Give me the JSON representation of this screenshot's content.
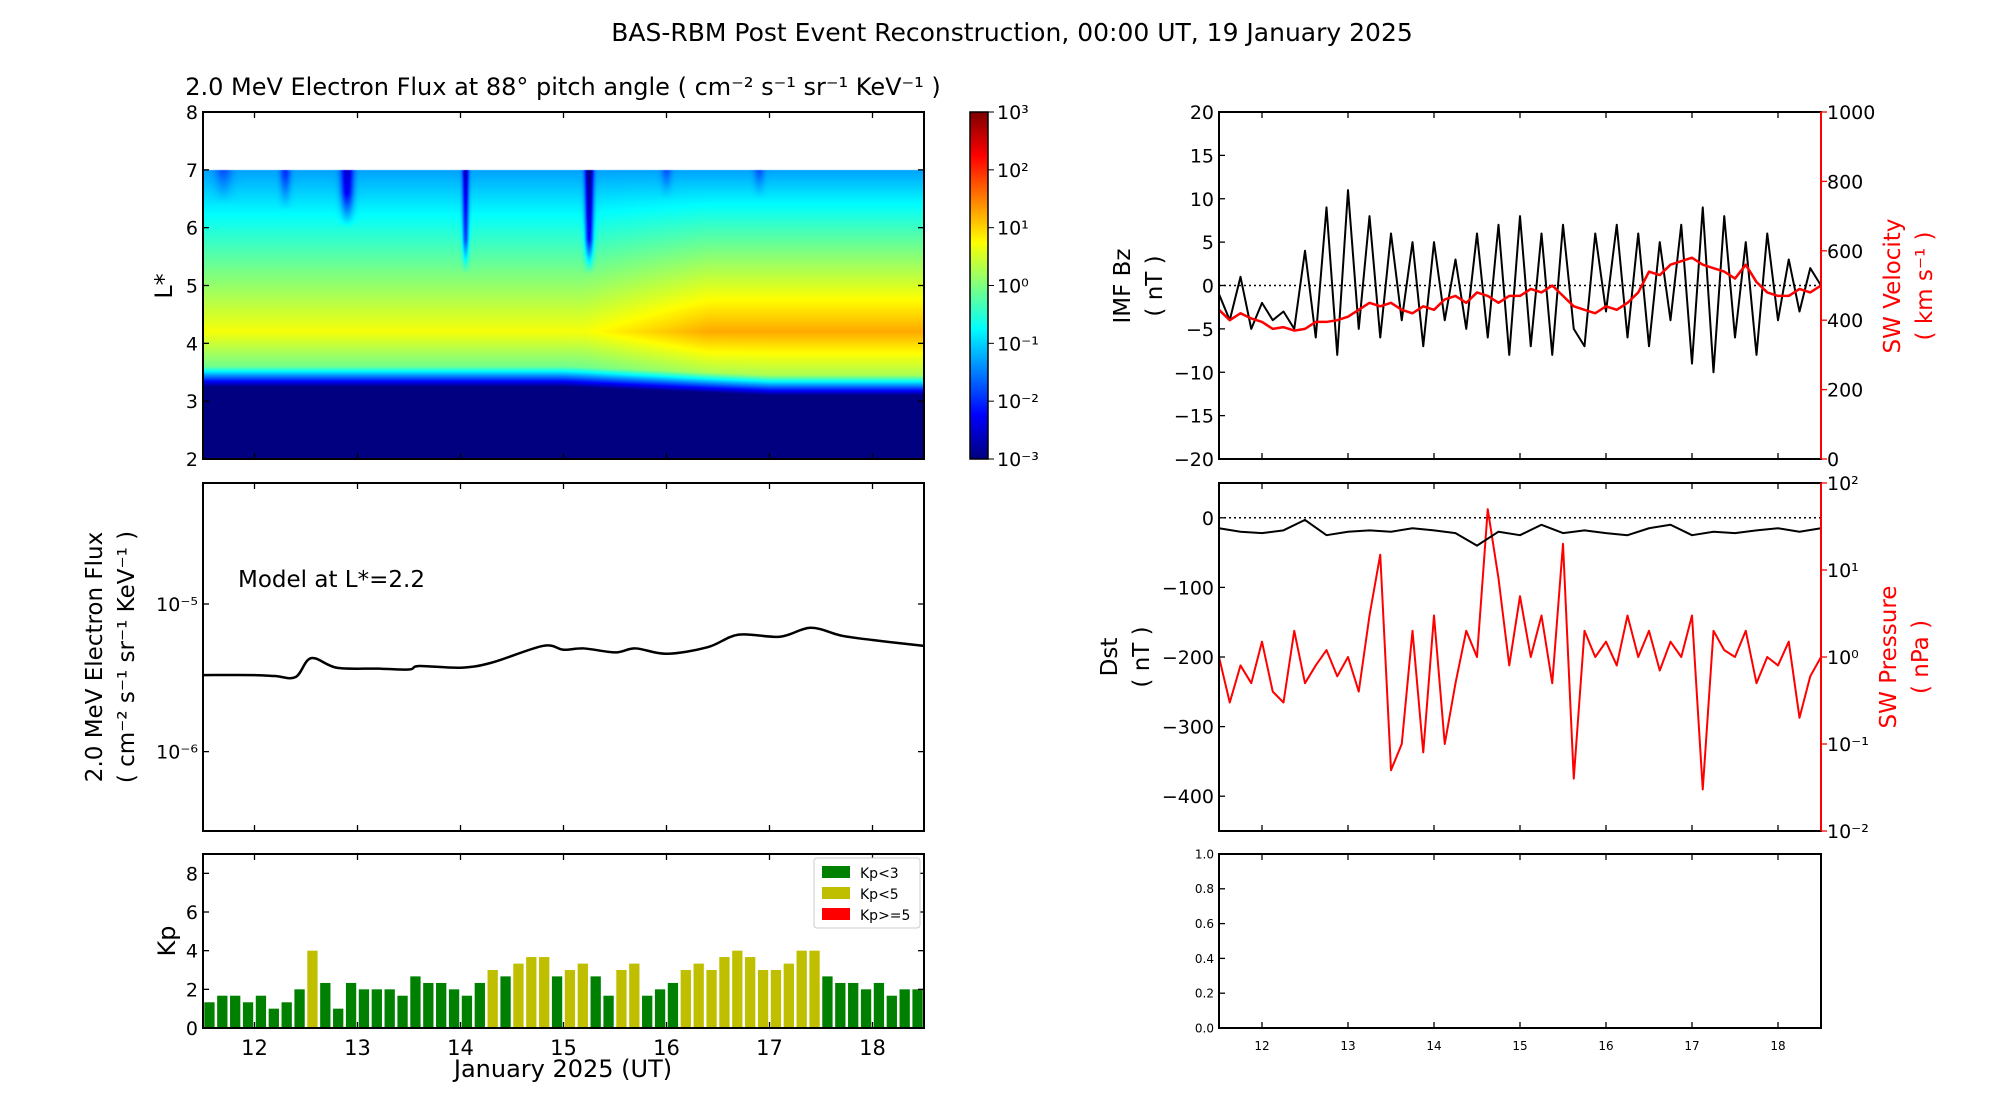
{
  "figure_title": "BAS-RBM Post Event Reconstruction, 00:00 UT, 19 January 2025",
  "colors": {
    "kp_low": "#008000",
    "kp_mid": "#bfbf00",
    "kp_high": "#ff0000",
    "bz": "#000000",
    "velocity": "#ff0000",
    "dst": "#000000",
    "pressure": "#ff0000"
  },
  "chart_data": [
    {
      "type": "heatmap",
      "title": "2.0 MeV Electron Flux at 88° pitch angle ( cm⁻² s⁻¹ sr⁻¹ KeV⁻¹ )",
      "ylabel": "L*",
      "xlim": [
        11.5,
        18.5
      ],
      "ylim": [
        2,
        8
      ],
      "yticks": [
        "2",
        "3",
        "4",
        "5",
        "6",
        "7",
        "8"
      ],
      "data_L_range": [
        2,
        7
      ],
      "colorbar": {
        "scale": "log",
        "range": [
          0.001,
          1000
        ],
        "colormap": "jet",
        "ticks": [
          "10⁻³",
          "10⁻²",
          "10⁻¹",
          "10⁰",
          "10¹",
          "10²",
          "10³"
        ]
      }
    },
    {
      "type": "line",
      "ylabel_line1": "2.0 MeV Electron Flux",
      "ylabel_line2": "( cm⁻² s⁻¹ sr⁻¹ KeV⁻¹ )",
      "annotation": "Model at L*=2.2",
      "yscale": "log",
      "xlim": [
        11.5,
        18.5
      ],
      "ylim": [
        2.9e-07,
        6.6e-05
      ],
      "yticks": [
        {
          "value": 1e-05,
          "label": "10⁻⁵"
        },
        {
          "value": 1e-06,
          "label": "10⁻⁶"
        }
      ],
      "x": [
        11.5,
        12.0,
        12.2,
        12.4,
        12.55,
        12.8,
        13.2,
        13.5,
        13.6,
        14.0,
        14.3,
        14.8,
        15.0,
        15.2,
        15.5,
        15.7,
        16.0,
        16.4,
        16.7,
        17.1,
        17.4,
        17.7,
        18.0,
        18.5
      ],
      "y": [
        3.3e-06,
        3.3e-06,
        3.25e-06,
        3.2e-06,
        4.3e-06,
        3.7e-06,
        3.65e-06,
        3.6e-06,
        3.8e-06,
        3.7e-06,
        4e-06,
        5.2e-06,
        4.9e-06,
        5e-06,
        4.7e-06,
        5e-06,
        4.6e-06,
        5.1e-06,
        6.2e-06,
        6e-06,
        6.9e-06,
        6.1e-06,
        5.7e-06,
        5.2e-06
      ]
    },
    {
      "type": "bar",
      "ylabel": "Kp",
      "xlabel": "January 2025 (UT)",
      "xlim": [
        11.5,
        18.5
      ],
      "ylim": [
        0,
        9
      ],
      "yticks": [
        "0",
        "2",
        "4",
        "6",
        "8"
      ],
      "xticks": [
        "12",
        "13",
        "14",
        "15",
        "16",
        "17",
        "18"
      ],
      "bar_interval_hours": 3,
      "legend": {
        "placement": "top-right",
        "entries": [
          "Kp<3",
          "Kp<5",
          "Kp>=5"
        ]
      },
      "values": [
        1.33,
        1.67,
        1.67,
        1.33,
        1.67,
        1,
        1.33,
        2,
        4,
        2.33,
        1,
        2.33,
        2,
        2,
        2,
        1.67,
        2.67,
        2.33,
        2.33,
        2,
        1.67,
        2.33,
        3,
        2.67,
        3.33,
        3.67,
        3.67,
        2.67,
        3,
        3.33,
        2.67,
        1.67,
        3,
        3.33,
        1.67,
        2,
        2.33,
        3,
        3.33,
        3,
        3.67,
        4,
        3.67,
        3,
        3,
        3.33,
        4,
        4,
        2.67,
        2.33,
        2.33,
        2,
        2.33,
        1.67,
        2,
        2
      ]
    },
    {
      "type": "line",
      "xlim": [
        11.5,
        18.5
      ],
      "left_axis": {
        "label_line1": "IMF Bz",
        "label_line2": "( nT )",
        "ylim": [
          -20,
          20
        ],
        "yticks": [
          "−20",
          "−15",
          "−10",
          "−5",
          "0",
          "5",
          "10",
          "15",
          "20"
        ]
      },
      "right_axis": {
        "label_line1": "SW Velocity",
        "label_line2": "( km s⁻¹ )",
        "ylim": [
          0,
          1000
        ],
        "yticks": [
          "0",
          "200",
          "400",
          "600",
          "800",
          "1000"
        ]
      },
      "sample_interval_hours": 3,
      "series": [
        {
          "axis": "left",
          "values": [
            -1,
            -4,
            1,
            -5,
            -2,
            -4,
            -3,
            -5,
            4,
            -6,
            9,
            -8,
            11,
            -5,
            8,
            -6,
            6,
            -4,
            5,
            -7,
            5,
            -4,
            3,
            -5,
            6,
            -6,
            7,
            -8,
            8,
            -7,
            6,
            -8,
            7,
            -5,
            -7,
            6,
            -3,
            7,
            -6,
            6,
            -7,
            5,
            -4,
            7,
            -9,
            9,
            -10,
            8,
            -6,
            5,
            -8,
            6,
            -4,
            3,
            -3,
            2,
            0
          ]
        },
        {
          "axis": "right",
          "values": [
            430,
            400,
            420,
            405,
            395,
            375,
            380,
            370,
            375,
            395,
            395,
            400,
            410,
            430,
            450,
            440,
            450,
            430,
            420,
            440,
            430,
            460,
            470,
            450,
            480,
            470,
            450,
            470,
            470,
            490,
            480,
            500,
            470,
            440,
            430,
            420,
            440,
            430,
            450,
            480,
            540,
            530,
            560,
            570,
            580,
            560,
            550,
            540,
            520,
            560,
            510,
            480,
            470,
            470,
            490,
            480,
            500
          ]
        }
      ]
    },
    {
      "type": "line",
      "xlim": [
        11.5,
        18.5
      ],
      "left_axis": {
        "label_line1": "Dst",
        "label_line2": "( nT )",
        "ylim": [
          -450,
          50
        ],
        "yticks": [
          "−400",
          "−300",
          "−200",
          "−100",
          "0"
        ]
      },
      "right_axis": {
        "label_line1": "SW Pressure",
        "label_line2": "( nPa )",
        "scale": "log",
        "ylim": [
          0.01,
          100
        ],
        "yticks": [
          "10⁻²",
          "10⁻¹",
          "10⁰",
          "10¹",
          "10²"
        ]
      },
      "series": [
        {
          "axis": "left",
          "sample_interval_hours": 6,
          "values": [
            -15,
            -20,
            -22,
            -18,
            -3,
            -25,
            -20,
            -18,
            -20,
            -15,
            -18,
            -22,
            -40,
            -20,
            -25,
            -10,
            -22,
            -18,
            -22,
            -25,
            -15,
            -10,
            -25,
            -20,
            -22,
            -18,
            -15,
            -20,
            -15
          ]
        },
        {
          "axis": "right",
          "sample_interval_hours": 3,
          "values": [
            1,
            0.3,
            0.8,
            0.5,
            1.5,
            0.4,
            0.3,
            2,
            0.5,
            0.8,
            1.2,
            0.6,
            1,
            0.4,
            3,
            15,
            0.05,
            0.1,
            2,
            0.08,
            3,
            0.1,
            0.5,
            2,
            1,
            50,
            8,
            0.8,
            5,
            1,
            3,
            0.5,
            20,
            0.04,
            2,
            1,
            1.5,
            0.8,
            3,
            1,
            2,
            0.7,
            1.5,
            1,
            3,
            0.03,
            2,
            1.2,
            1,
            2,
            0.5,
            1,
            0.8,
            1.5,
            0.2,
            0.6,
            1
          ]
        }
      ]
    },
    {
      "type": "line",
      "xlim": [
        11.5,
        18.5
      ],
      "ylim": [
        0,
        1
      ],
      "yticks": [
        "0.0",
        "0.2",
        "0.4",
        "0.6",
        "0.8",
        "1.0"
      ],
      "xticks": [
        "12",
        "13",
        "14",
        "15",
        "16",
        "17",
        "18"
      ]
    }
  ]
}
